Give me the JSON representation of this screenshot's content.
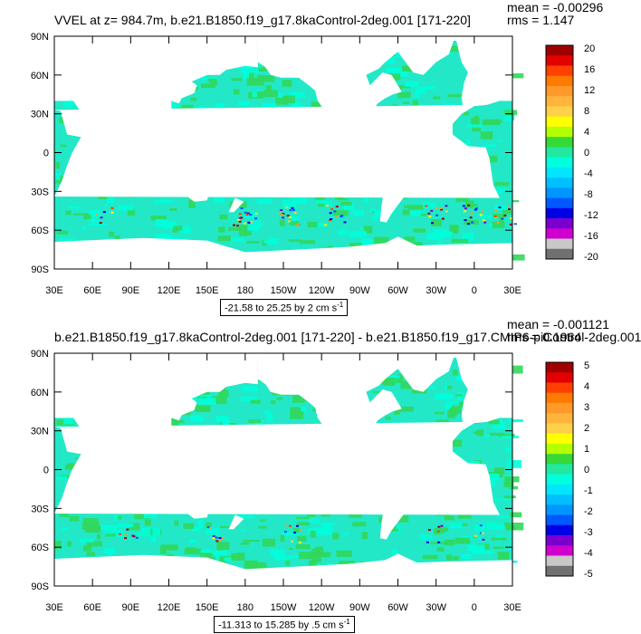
{
  "colors": {
    "ocean_main": "#22e8c8",
    "ocean_light": "#00ffdc",
    "green": "#32d75a",
    "land": "#ffffff"
  },
  "chart_data": [
    {
      "type": "heatmap",
      "title": "VVEL at z= 984.7m, b.e21.B1850.f19_g17.8kaControl-2deg.001 [171-220]",
      "stats": {
        "mean": "mean = -0.00296",
        "rms": "rms = 1.147"
      },
      "y_ticks": [
        "90N",
        "60N",
        "30N",
        "0",
        "30S",
        "60S",
        "90S"
      ],
      "x_ticks": [
        "30E",
        "60E",
        "90E",
        "120E",
        "150E",
        "180",
        "150W",
        "120W",
        "90W",
        "60W",
        "30W",
        "0",
        "30E"
      ],
      "colorbar": {
        "labels": [
          "20",
          "16",
          "12",
          "8",
          "4",
          "0",
          "-4",
          "-8",
          "-12",
          "-16",
          "-20"
        ],
        "colors": [
          "#a00000",
          "#e40000",
          "#ff4000",
          "#ff7a00",
          "#ff9a2a",
          "#ffb43c",
          "#ffd04a",
          "#ffff00",
          "#b4ff00",
          "#36d936",
          "#22e8a0",
          "#00ffdc",
          "#00e6ff",
          "#00bfff",
          "#0096ff",
          "#0058ff",
          "#0000e6",
          "#7a00d0",
          "#d000d0",
          "#c8c8c8",
          "#707070"
        ]
      },
      "range_text": "-21.58 to 25.25 by 2 cm s",
      "range_unit_exp": "-1"
    },
    {
      "type": "heatmap",
      "title": "b.e21.B1850.f19_g17.8kaControl-2deg.001 [171-220] - b.e21.B1850.f19_g17.CMIP6-piControl-2deg.001",
      "stats": {
        "mean": "mean = -0.001121",
        "rms": "rms = 0.1964"
      },
      "y_ticks": [
        "90N",
        "60N",
        "30N",
        "0",
        "30S",
        "60S",
        "90S"
      ],
      "x_ticks": [
        "30E",
        "60E",
        "90E",
        "120E",
        "150E",
        "180",
        "150W",
        "120W",
        "90W",
        "60W",
        "30W",
        "0",
        "30E"
      ],
      "colorbar": {
        "labels": [
          "5",
          "4",
          "3",
          "2",
          "1",
          "0",
          "-1",
          "-2",
          "-3",
          "-4",
          "-5"
        ],
        "colors": [
          "#a00000",
          "#e40000",
          "#ff4000",
          "#ff7a00",
          "#ff9a2a",
          "#ffb43c",
          "#ffd04a",
          "#ffff00",
          "#b4ff00",
          "#36d936",
          "#22e8a0",
          "#00ffdc",
          "#00e6ff",
          "#00bfff",
          "#0096ff",
          "#0058ff",
          "#0000e6",
          "#7a00d0",
          "#d000d0",
          "#c8c8c8",
          "#707070"
        ]
      },
      "range_text": "-11.313 to 15.285 by .5 cm s",
      "range_unit_exp": "-1"
    }
  ]
}
